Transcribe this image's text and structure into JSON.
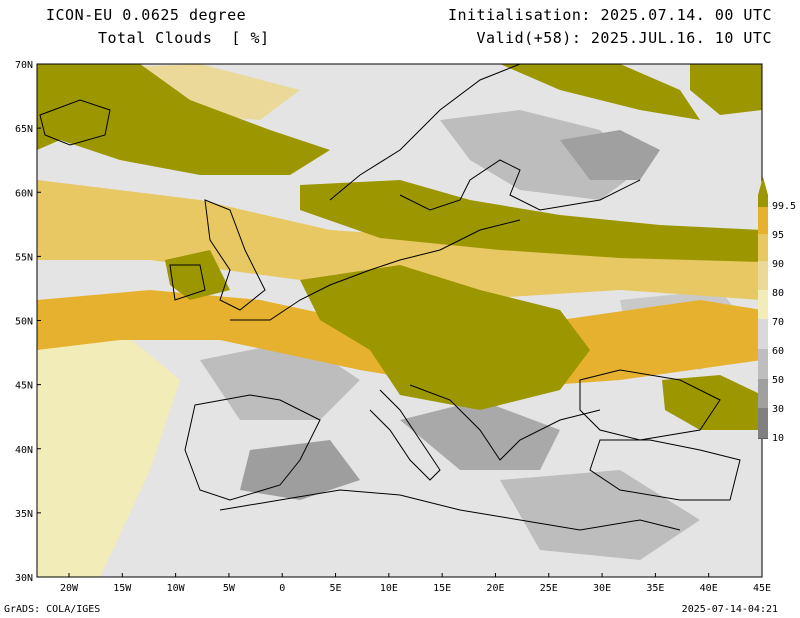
{
  "header": {
    "model": "ICON-EU 0.0625 degree",
    "field": "Total Clouds  [ %]",
    "initialisation": "Initialisation: 2025.07.14. 00 UTC",
    "valid": "Valid(+58): 2025.JUL.16. 10 UTC"
  },
  "axes": {
    "lat_labels": [
      "70N",
      "65N",
      "60N",
      "55N",
      "50N",
      "45N",
      "40N",
      "35N",
      "30N"
    ],
    "lon_labels": [
      "20W",
      "15W",
      "10W",
      "5W",
      "0",
      "5E",
      "10E",
      "15E",
      "20E",
      "25E",
      "30E",
      "35E",
      "40E",
      "45E"
    ]
  },
  "legend": {
    "levels": [
      "99.5",
      "95",
      "90",
      "80",
      "70",
      "60",
      "50",
      "30",
      "10"
    ],
    "colors": [
      "#9c9600",
      "#e6b12f",
      "#e8c862",
      "#ebd99a",
      "#f1ecb8",
      "#d9d9d9",
      "#bebebe",
      "#a0a0a0",
      "#808080",
      "#5f5f5f"
    ]
  },
  "footer": {
    "left": "GrADS: COLA/IGES",
    "right": "2025-07-14-04:21"
  }
}
